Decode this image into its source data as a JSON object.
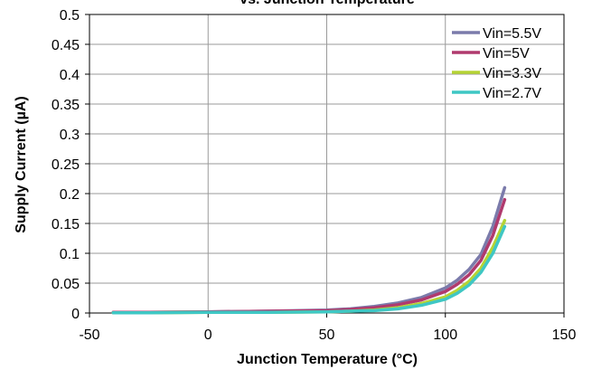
{
  "chart_data": {
    "type": "line",
    "title": "vs. Junction Temperature",
    "xlabel": "Junction Temperature (°C)",
    "ylabel": "Supply Current (µA)",
    "xlim": [
      -50,
      150
    ],
    "ylim": [
      0,
      0.5
    ],
    "xticks": [
      -50,
      0,
      50,
      100,
      150
    ],
    "xtick_labels": [
      "-50",
      "0",
      "50",
      "100",
      "150"
    ],
    "yticks": [
      0,
      0.05,
      0.1,
      0.15,
      0.2,
      0.25,
      0.3,
      0.35,
      0.4,
      0.45,
      0.5
    ],
    "ytick_labels": [
      "0",
      "0.05",
      "0.1",
      "0.15",
      "0.2",
      "0.25",
      "0.3",
      "0.35",
      "0.4",
      "0.45",
      "0.5"
    ],
    "grid": true,
    "legend_position": "top-right",
    "series": [
      {
        "name": "Vin=5.5V",
        "color": "#7b7bab",
        "x": [
          -40,
          -25,
          0,
          25,
          50,
          60,
          70,
          80,
          90,
          100,
          105,
          110,
          115,
          120,
          125
        ],
        "y": [
          0.001,
          0.001,
          0.002,
          0.003,
          0.005,
          0.007,
          0.011,
          0.017,
          0.026,
          0.042,
          0.055,
          0.073,
          0.098,
          0.145,
          0.21
        ]
      },
      {
        "name": "Vin=5V",
        "color": "#b03a6e",
        "x": [
          -40,
          -25,
          0,
          25,
          50,
          60,
          70,
          80,
          90,
          100,
          105,
          110,
          115,
          120,
          125
        ],
        "y": [
          0.001,
          0.001,
          0.002,
          0.003,
          0.004,
          0.006,
          0.009,
          0.014,
          0.022,
          0.036,
          0.048,
          0.064,
          0.088,
          0.13,
          0.19
        ]
      },
      {
        "name": "Vin=3.3V",
        "color": "#b5d334",
        "x": [
          -40,
          -25,
          0,
          25,
          50,
          60,
          70,
          80,
          90,
          100,
          105,
          110,
          115,
          120,
          125
        ],
        "y": [
          0.0005,
          0.0005,
          0.001,
          0.001,
          0.002,
          0.003,
          0.005,
          0.009,
          0.016,
          0.027,
          0.038,
          0.053,
          0.075,
          0.11,
          0.155
        ]
      },
      {
        "name": "Vin=2.7V",
        "color": "#3fc7c4",
        "x": [
          -40,
          -25,
          0,
          25,
          50,
          60,
          70,
          80,
          90,
          100,
          105,
          110,
          115,
          120,
          125
        ],
        "y": [
          0.0005,
          0.0005,
          0.001,
          0.001,
          0.002,
          0.003,
          0.004,
          0.007,
          0.013,
          0.023,
          0.033,
          0.047,
          0.068,
          0.1,
          0.145
        ]
      }
    ]
  }
}
